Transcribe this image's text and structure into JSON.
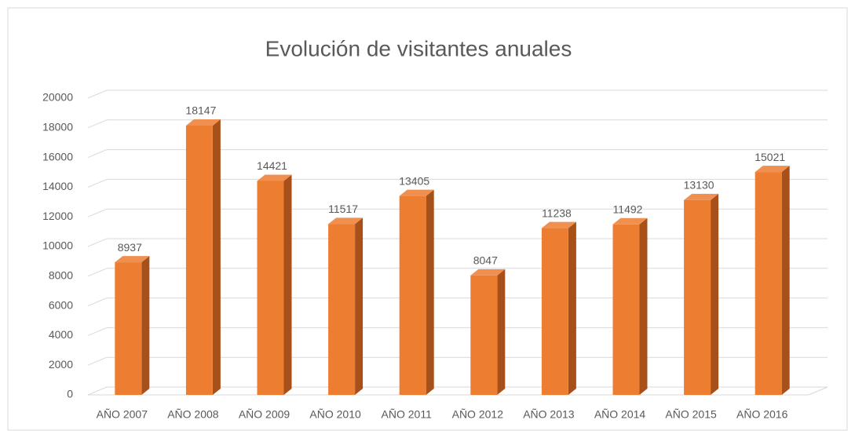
{
  "chart_data": {
    "type": "bar",
    "title": "Evolución de visitantes anuales",
    "categories": [
      "AÑO 2007",
      "AÑO 2008",
      "AÑO 2009",
      "AÑO 2010",
      "AÑO 2011",
      "AÑO 2012",
      "AÑO 2013",
      "AÑO 2014",
      "AÑO 2015",
      "AÑO 2016"
    ],
    "values": [
      8937,
      18147,
      14421,
      11517,
      13405,
      8047,
      11238,
      11492,
      13130,
      15021
    ],
    "color": "#ed7d31",
    "ylim": [
      0,
      20000
    ],
    "yticks": [
      0,
      2000,
      4000,
      6000,
      8000,
      10000,
      12000,
      14000,
      16000,
      18000,
      20000
    ],
    "grid": true
  }
}
